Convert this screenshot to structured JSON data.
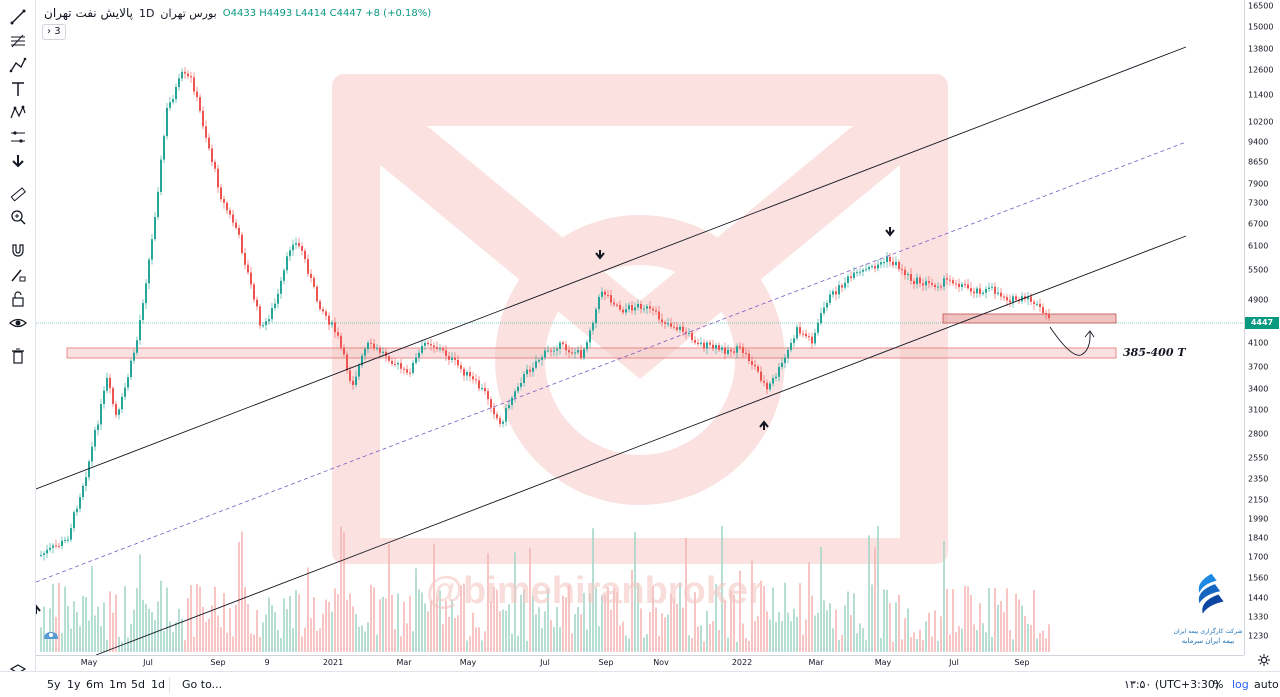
{
  "legend": {
    "symbol": "پالایش نفت تهران",
    "interval": "1D",
    "exchange": "بورس تهران",
    "open": "O4433",
    "high": "H4493",
    "low": "L4414",
    "close": "C4447",
    "change": "+8 (+0.18%)",
    "indicator_count": "3"
  },
  "price_axis": {
    "ticks": [
      "16500",
      "15000",
      "13800",
      "12600",
      "11400",
      "10200",
      "9400",
      "8650",
      "7900",
      "7300",
      "6700",
      "6100",
      "5500",
      "4900",
      "4100",
      "3700",
      "3400",
      "3100",
      "2800",
      "2550",
      "2350",
      "2150",
      "1990",
      "1840",
      "1700",
      "1560",
      "1440",
      "1330",
      "1230"
    ],
    "current_price": "4447",
    "scale": "log"
  },
  "time_axis": {
    "labels": [
      "May",
      "Jul",
      "Sep",
      "9",
      "2021",
      "Mar",
      "May",
      "Jul",
      "Sep",
      "Nov",
      "2022",
      "Mar",
      "May",
      "Jul",
      "Sep"
    ]
  },
  "annotations": {
    "zone_label": "385-400 T",
    "watermark": "@bimehiranbroker",
    "logo_text_1": "شرکت کارگزاری بیمه ایران",
    "logo_text_2": "بیمه ایران سرمایه"
  },
  "bottom_bar": {
    "ranges": [
      "5y",
      "1y",
      "6m",
      "1m",
      "5d",
      "1d"
    ],
    "goto": "Go to...",
    "time": "۱۳:۵۰ (UTC+3:30)",
    "percent": "%",
    "log": "log",
    "auto": "auto"
  },
  "colors": {
    "up": "#26a69a",
    "down": "#ef5350",
    "accent": "#089981",
    "zone_fill": "#f3c9c7",
    "channel_line": "#131722",
    "dashed_line": "#7e57c2"
  },
  "toolbar_icons": [
    "trend-line-icon",
    "fib-icon",
    "path-icon",
    "text-icon",
    "pattern-icon",
    "measure-icon",
    "arrow-down-icon",
    "ruler-icon",
    "zoom-icon",
    "magnet-icon",
    "pencil-lock-icon",
    "lock-icon",
    "eye-icon",
    "trash-icon"
  ]
}
